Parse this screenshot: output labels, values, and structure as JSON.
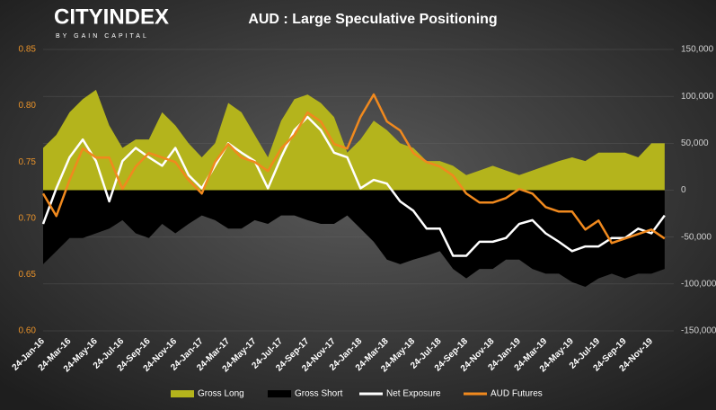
{
  "logo": {
    "brand": "CITYINDEX",
    "tagline": "BY GAIN CAPITAL"
  },
  "chart_data": {
    "type": "combo",
    "title": "AUD : Large Speculative Positioning",
    "categories": [
      "24-Jan-16",
      null,
      "24-Mar-16",
      null,
      "24-May-16",
      null,
      "24-Jul-16",
      null,
      "24-Sep-16",
      null,
      "24-Nov-16",
      null,
      "24-Jan-17",
      null,
      "24-Mar-17",
      null,
      "24-May-17",
      null,
      "24-Jul-17",
      null,
      "24-Sep-17",
      null,
      "24-Nov-17",
      null,
      "24-Jan-18",
      null,
      "24-Mar-18",
      null,
      "24-May-18",
      null,
      "24-Jul-18",
      null,
      "24-Sep-18",
      null,
      "24-Nov-18",
      null,
      "24-Jan-19",
      null,
      "24-Mar-19",
      null,
      "24-May-19",
      null,
      "24-Jul-19",
      null,
      "24-Sep-19",
      null,
      "24-Nov-19",
      null
    ],
    "ylim": [
      0.6,
      0.85
    ],
    "yticks": [
      {
        "value": 0.6,
        "label": "0.60"
      },
      0.65,
      {
        "value": 0.7,
        "label": "0.70"
      },
      0.75,
      {
        "value": 0.8,
        "label": "0.80"
      },
      0.85
    ],
    "y2lim": [
      -150000,
      150000
    ],
    "y2ticks": [
      {
        "value": -150000,
        "label": "-150,000"
      },
      {
        "value": -100000,
        "label": "-100,000"
      },
      {
        "value": -50000,
        "label": "-50,000"
      },
      0,
      {
        "value": 50000,
        "label": "50,000"
      },
      {
        "value": 100000,
        "label": "100,000"
      },
      {
        "value": 150000,
        "label": "150,000"
      }
    ],
    "grid": true,
    "legend": "bottom",
    "series": [
      {
        "name": "Gross Long",
        "type": "area",
        "axis": "y2",
        "color": "#b4b41c",
        "values": [
          45000,
          59000,
          83000,
          97000,
          107000,
          69000,
          45000,
          54000,
          54000,
          83000,
          69000,
          50000,
          35000,
          50000,
          93000,
          83000,
          59000,
          35000,
          74000,
          97000,
          102000,
          93000,
          78000,
          40000,
          54000,
          74000,
          64000,
          50000,
          45000,
          31000,
          31000,
          26000,
          16000,
          21000,
          26000,
          21000,
          16000,
          21000,
          26000,
          31000,
          35000,
          31000,
          40000,
          40000,
          40000,
          35000,
          50000,
          50000
        ]
      },
      {
        "name": "Gross Short",
        "type": "area",
        "axis": "y2",
        "color": "#000000",
        "values": [
          -79000,
          -65000,
          -51000,
          -51000,
          -46000,
          -41000,
          -32000,
          -46000,
          -51000,
          -36000,
          -46000,
          -36000,
          -27000,
          -32000,
          -41000,
          -41000,
          -32000,
          -36000,
          -27000,
          -27000,
          -32000,
          -36000,
          -36000,
          -27000,
          -41000,
          -55000,
          -74000,
          -79000,
          -74000,
          -70000,
          -65000,
          -84000,
          -94000,
          -84000,
          -84000,
          -74000,
          -74000,
          -84000,
          -89000,
          -89000,
          -98000,
          -103000,
          -94000,
          -89000,
          -94000,
          -89000,
          -89000,
          -84000
        ]
      },
      {
        "name": "Net Exposure",
        "type": "line",
        "axis": "y2",
        "color": "#ffffff",
        "values": [
          -36000,
          2000,
          35000,
          54000,
          31000,
          -12000,
          31000,
          45000,
          35000,
          26000,
          45000,
          16000,
          2000,
          26000,
          50000,
          40000,
          31000,
          2000,
          35000,
          64000,
          78000,
          64000,
          40000,
          35000,
          2000,
          11000,
          7000,
          -12000,
          -22000,
          -41000,
          -41000,
          -70000,
          -70000,
          -55000,
          -55000,
          -51000,
          -36000,
          -32000,
          -46000,
          -55000,
          -65000,
          -60000,
          -60000,
          -51000,
          -51000,
          -41000,
          -46000,
          -27000
        ]
      },
      {
        "name": "AUD Futures",
        "type": "line",
        "axis": "y",
        "color": "#f0891e",
        "values": [
          0.722,
          0.702,
          0.734,
          0.762,
          0.754,
          0.754,
          0.726,
          0.746,
          0.758,
          0.754,
          0.75,
          0.734,
          0.722,
          0.75,
          0.766,
          0.754,
          0.75,
          0.742,
          0.762,
          0.774,
          0.794,
          0.786,
          0.766,
          0.762,
          0.79,
          0.81,
          0.786,
          0.778,
          0.758,
          0.75,
          0.746,
          0.738,
          0.722,
          0.714,
          0.714,
          0.718,
          0.726,
          0.722,
          0.71,
          0.706,
          0.706,
          0.69,
          0.698,
          0.678,
          0.682,
          0.686,
          0.69,
          0.682
        ]
      }
    ]
  }
}
